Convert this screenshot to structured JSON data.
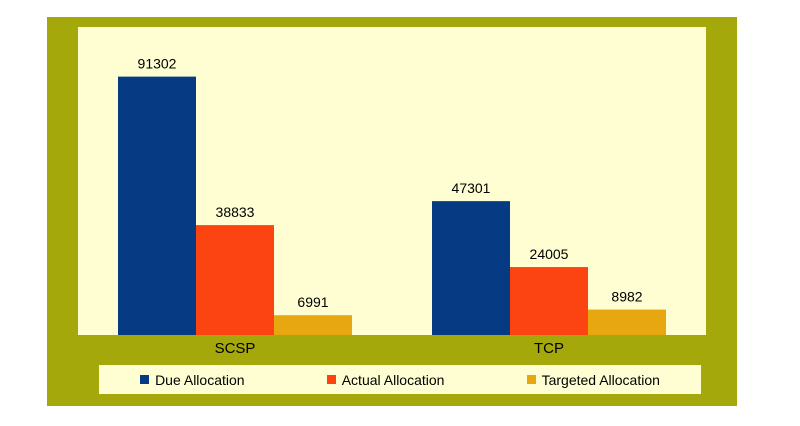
{
  "chart_data": {
    "type": "bar",
    "categories": [
      "SCSP",
      "TCP"
    ],
    "series": [
      {
        "name": "Due Allocation",
        "values": [
          91302,
          47301
        ],
        "color": "#063b84"
      },
      {
        "name": "Actual Allocation",
        "values": [
          38833,
          24005
        ],
        "color": "#fb4412"
      },
      {
        "name": "Targeted Allocation",
        "values": [
          6991,
          8982
        ],
        "color": "#e6a710"
      }
    ],
    "title": "",
    "xlabel": "",
    "ylabel": "",
    "ylim": [
      0,
      100000
    ],
    "grid": false,
    "legend_position": "bottom"
  },
  "colors": {
    "frame": "#a5a80b",
    "plot_background": "#fefed2"
  }
}
